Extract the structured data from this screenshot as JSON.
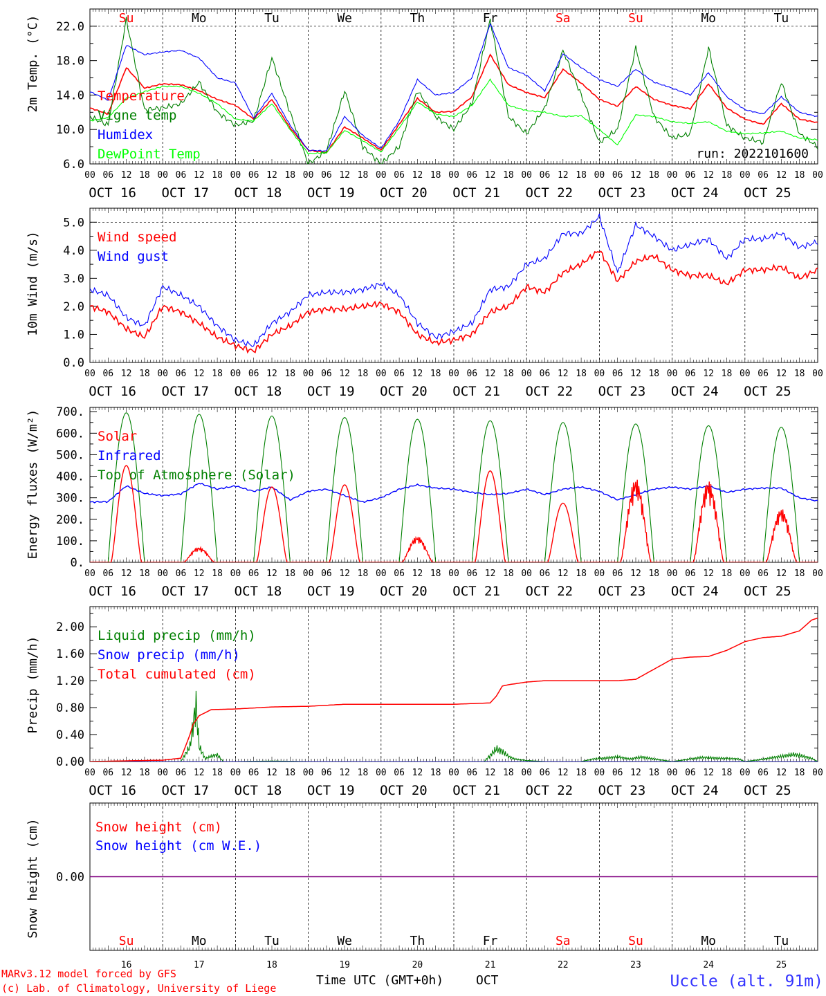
{
  "footer": {
    "model_line": "MARv3.12 model forced by GFS",
    "copyright_line": "(c) Lab. of Climatology, University of Liege",
    "axis_title": "Time UTC (GMT+0h)",
    "month": "OCT",
    "station": "Uccle (alt. 91m)"
  },
  "run_label": "run: 2022101600",
  "day_names": [
    "Su",
    "Mo",
    "Tu",
    "We",
    "Th",
    "Fr",
    "Sa",
    "Su",
    "Mo",
    "Tu"
  ],
  "weekend_day_color": "#ff0000",
  "weekday_color": "#000000",
  "date_labels": [
    "OCT 16",
    "OCT 17",
    "OCT 18",
    "OCT 19",
    "OCT 20",
    "OCT 21",
    "OCT 22",
    "OCT 23",
    "OCT 24",
    "OCT 25"
  ],
  "day_numbers": [
    "16",
    "17",
    "18",
    "19",
    "20",
    "21",
    "22",
    "23",
    "24",
    "25"
  ],
  "hour_labels": [
    "00",
    "06",
    "12",
    "18"
  ],
  "final_hour_label": "00",
  "chart_data": [
    {
      "type": "line",
      "ylabel": "2m Temp. (°C)",
      "ylim": [
        6,
        24
      ],
      "yticks": [
        6.0,
        10.0,
        14.0,
        18.0,
        22.0
      ],
      "ytick_labels": [
        "6.0",
        "10.0",
        "14.0",
        "18.0",
        "22.0"
      ],
      "x_unit": "hours since 2022-10-16 00 UTC",
      "x": [
        0,
        6,
        12,
        18,
        24,
        30,
        36,
        42,
        48,
        54,
        60,
        66,
        72,
        78,
        84,
        90,
        96,
        102,
        108,
        114,
        120,
        126,
        132,
        138,
        144,
        150,
        156,
        162,
        168,
        174,
        180,
        186,
        192,
        198,
        204,
        210,
        216,
        222,
        228,
        234,
        240
      ],
      "series": [
        {
          "name": "Temperature",
          "color": "#ff0000",
          "values": [
            12.5,
            11.8,
            17.2,
            14.8,
            15.3,
            15.2,
            14.5,
            13.5,
            12.8,
            11.2,
            13.5,
            10.2,
            7.6,
            7.3,
            10.3,
            9.0,
            7.6,
            10.6,
            13.6,
            12.0,
            12.1,
            13.8,
            18.7,
            15.2,
            14.3,
            13.7,
            17.0,
            15.4,
            13.5,
            12.7,
            15.0,
            13.5,
            12.8,
            12.4,
            15.3,
            12.5,
            11.2,
            10.6,
            13.0,
            11.2,
            10.8
          ]
        },
        {
          "name": "Vigne temp",
          "color": "#008000",
          "values": [
            11.5,
            10.5,
            22.8,
            12.3,
            12.5,
            13.0,
            15.5,
            12.0,
            10.5,
            11.0,
            18.3,
            12.0,
            6.0,
            7.5,
            14.5,
            8.0,
            6.0,
            8.0,
            14.5,
            11.5,
            10.0,
            13.0,
            22.8,
            11.5,
            9.5,
            12.5,
            19.2,
            14.0,
            8.5,
            10.0,
            19.5,
            11.5,
            9.0,
            9.5,
            19.5,
            10.5,
            9.0,
            8.5,
            15.5,
            9.5,
            8.0
          ]
        },
        {
          "name": "Humidex",
          "color": "#0000ff",
          "values": [
            14.4,
            13.4,
            19.8,
            18.7,
            19.0,
            19.2,
            18.3,
            16.0,
            15.4,
            11.3,
            14.2,
            10.5,
            7.6,
            7.5,
            11.5,
            9.3,
            7.8,
            11.0,
            15.8,
            14.0,
            14.3,
            16.0,
            22.3,
            17.2,
            16.3,
            14.5,
            18.8,
            17.2,
            15.8,
            15.0,
            17.0,
            15.5,
            14.8,
            14.0,
            16.6,
            13.8,
            12.3,
            11.8,
            13.8,
            12.0,
            11.5
          ]
        },
        {
          "name": "DewPoint Temp",
          "color": "#00ff00",
          "values": [
            11.0,
            11.4,
            13.6,
            14.4,
            15.0,
            15.0,
            14.2,
            13.0,
            11.2,
            11.0,
            13.0,
            10.0,
            7.2,
            7.3,
            9.9,
            8.7,
            7.4,
            10.2,
            13.2,
            11.8,
            11.5,
            12.8,
            15.8,
            12.8,
            12.2,
            12.0,
            11.5,
            11.6,
            10.0,
            8.2,
            11.7,
            11.5,
            10.9,
            10.7,
            10.9,
            9.8,
            9.5,
            9.6,
            9.8,
            9.0,
            8.8
          ]
        }
      ]
    },
    {
      "type": "line",
      "ylabel": "10m Wind (m/s)",
      "ylim": [
        0,
        5.5
      ],
      "yticks": [
        0,
        1,
        2,
        3,
        4,
        5
      ],
      "ytick_labels": [
        "0.0",
        "1.0",
        "2.0",
        "3.0",
        "4.0",
        "5.0"
      ],
      "x_unit": "hours since 2022-10-16 00 UTC",
      "x": [
        0,
        6,
        12,
        18,
        24,
        30,
        36,
        42,
        48,
        54,
        60,
        66,
        72,
        78,
        84,
        90,
        96,
        102,
        108,
        114,
        120,
        126,
        132,
        138,
        144,
        150,
        156,
        162,
        168,
        174,
        180,
        186,
        192,
        198,
        204,
        210,
        216,
        222,
        228,
        234,
        240
      ],
      "series": [
        {
          "name": "Wind speed",
          "color": "#ff0000",
          "values": [
            2.0,
            1.8,
            1.2,
            0.9,
            2.0,
            1.8,
            1.4,
            0.9,
            0.6,
            0.4,
            1.0,
            1.3,
            1.8,
            1.9,
            1.9,
            2.0,
            2.1,
            1.8,
            1.0,
            0.7,
            0.8,
            1.0,
            1.8,
            2.0,
            2.7,
            2.5,
            3.2,
            3.5,
            4.0,
            2.9,
            3.6,
            3.8,
            3.3,
            3.1,
            3.1,
            2.8,
            3.3,
            3.3,
            3.4,
            3.0,
            3.3
          ]
        },
        {
          "name": "Wind gust",
          "color": "#0000ff",
          "values": [
            2.6,
            2.4,
            1.6,
            1.3,
            2.7,
            2.4,
            2.0,
            1.3,
            0.8,
            0.6,
            1.4,
            1.8,
            2.4,
            2.5,
            2.5,
            2.6,
            2.8,
            2.4,
            1.4,
            0.9,
            1.1,
            1.4,
            2.6,
            2.7,
            3.5,
            3.7,
            4.6,
            4.6,
            5.2,
            3.2,
            4.9,
            4.5,
            4.0,
            4.2,
            4.4,
            3.7,
            4.4,
            4.4,
            4.6,
            4.1,
            4.3
          ]
        }
      ]
    },
    {
      "type": "line",
      "ylabel": "Energy fluxes (W/m²)",
      "ylim": [
        0,
        720
      ],
      "yticks": [
        0,
        100,
        200,
        300,
        400,
        500,
        600,
        700
      ],
      "ytick_labels": [
        "0.",
        "100.",
        "200.",
        "300.",
        "400.",
        "500.",
        "600.",
        "700."
      ],
      "solar_peaks_by_day": [
        450,
        70,
        350,
        360,
        120,
        425,
        275,
        390,
        380,
        250
      ],
      "toa_peaks_by_day": [
        695,
        688,
        680,
        673,
        665,
        658,
        650,
        643,
        635,
        628
      ],
      "daylight_hours_utc": [
        6,
        18
      ],
      "series": [
        {
          "name": "Solar",
          "color": "#ff0000"
        },
        {
          "name": "Infrared",
          "color": "#0000ff",
          "x": [
            0,
            6,
            12,
            18,
            24,
            30,
            36,
            42,
            48,
            54,
            60,
            66,
            72,
            78,
            84,
            90,
            96,
            102,
            108,
            114,
            120,
            126,
            132,
            138,
            144,
            150,
            156,
            162,
            168,
            174,
            180,
            186,
            192,
            198,
            204,
            210,
            216,
            222,
            228,
            234,
            240
          ],
          "values": [
            280,
            282,
            355,
            320,
            310,
            318,
            368,
            340,
            355,
            330,
            350,
            290,
            330,
            340,
            310,
            280,
            300,
            340,
            360,
            345,
            340,
            325,
            315,
            320,
            340,
            315,
            340,
            350,
            330,
            290,
            315,
            340,
            350,
            340,
            355,
            325,
            340,
            345,
            345,
            300,
            285
          ]
        },
        {
          "name": "Top of Atmosphere (Solar)",
          "color": "#008000"
        }
      ]
    },
    {
      "type": "line",
      "ylabel": "Precip (mm/h)",
      "ylim": [
        0,
        2.3
      ],
      "yticks": [
        0,
        0.4,
        0.8,
        1.2,
        1.6,
        2.0
      ],
      "ytick_labels": [
        "0.00",
        "0.40",
        "0.80",
        "1.20",
        "1.60",
        "2.00"
      ],
      "x_unit": "hours since 2022-10-16 00 UTC",
      "series": [
        {
          "name": "Liquid precip (mm/h)",
          "color": "#008000",
          "x": [
            0,
            30,
            33,
            35,
            36,
            38,
            40,
            42,
            44,
            46,
            48,
            60,
            72,
            120,
            130,
            132,
            134,
            136,
            138,
            140,
            144,
            150,
            162,
            166,
            170,
            174,
            178,
            182,
            186,
            192,
            198,
            202,
            206,
            210,
            214,
            216,
            220,
            228,
            232,
            234,
            238,
            240
          ],
          "values": [
            0,
            0,
            0.3,
            1.12,
            0.3,
            0.06,
            0.1,
            0.13,
            0,
            0,
            0,
            0.01,
            0,
            0,
            0,
            0.12,
            0.25,
            0.2,
            0.1,
            0.05,
            0.02,
            0,
            0,
            0.05,
            0.07,
            0.09,
            0.05,
            0.09,
            0.05,
            0,
            0.05,
            0.08,
            0.07,
            0.06,
            0.05,
            0,
            0.03,
            0.1,
            0.14,
            0.12,
            0.06,
            0
          ]
        },
        {
          "name": "Snow precip (mm/h)",
          "color": "#0000ff",
          "x": [
            0,
            240
          ],
          "values": [
            0,
            0
          ]
        },
        {
          "name": "Total cumulated (cm)",
          "color": "#ff0000",
          "x": [
            0,
            12,
            24,
            30,
            33,
            34,
            36,
            40,
            48,
            60,
            72,
            84,
            96,
            108,
            120,
            126,
            132,
            134,
            136,
            138,
            144,
            150,
            156,
            162,
            168,
            174,
            180,
            186,
            192,
            198,
            204,
            210,
            216,
            222,
            228,
            234,
            238,
            240
          ],
          "values": [
            0,
            0.01,
            0.02,
            0.05,
            0.4,
            0.55,
            0.68,
            0.77,
            0.78,
            0.81,
            0.82,
            0.85,
            0.85,
            0.85,
            0.85,
            0.86,
            0.87,
            0.97,
            1.12,
            1.14,
            1.18,
            1.2,
            1.2,
            1.2,
            1.2,
            1.2,
            1.22,
            1.37,
            1.52,
            1.55,
            1.56,
            1.65,
            1.78,
            1.84,
            1.86,
            1.94,
            2.1,
            2.13
          ]
        }
      ]
    },
    {
      "type": "line",
      "ylabel": "Snow height (cm)",
      "ylim": [
        -1,
        1
      ],
      "yticks": [
        0
      ],
      "ytick_labels": [
        "0.00"
      ],
      "x_unit": "hours since 2022-10-16 00 UTC",
      "x": [
        0,
        240
      ],
      "series": [
        {
          "name": "Snow height (cm)",
          "color": "#ff0000",
          "values": [
            0,
            0
          ]
        },
        {
          "name": "Snow height (cm W.E.)",
          "color": "#0000ff",
          "values": [
            0,
            0
          ]
        }
      ]
    }
  ]
}
